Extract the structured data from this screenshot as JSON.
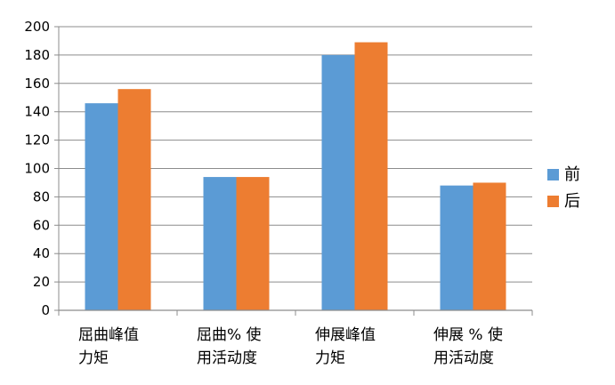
{
  "chart_data": {
    "type": "bar",
    "categories": [
      [
        "屈曲峰值",
        "力矩"
      ],
      [
        "屈曲% 使",
        "用活动度"
      ],
      [
        "伸展峰值",
        "力矩"
      ],
      [
        "伸展 % 使",
        "用活动度"
      ]
    ],
    "series": [
      {
        "name": "前",
        "color": "#5b9bd5",
        "values": [
          146,
          94,
          180,
          88
        ]
      },
      {
        "name": "后",
        "color": "#ed7d31",
        "values": [
          156,
          94,
          189,
          90
        ]
      }
    ],
    "ylim": [
      0,
      200
    ],
    "yticks": [
      0,
      20,
      40,
      60,
      80,
      100,
      120,
      140,
      160,
      180,
      200
    ],
    "grid": true,
    "legend": "right"
  }
}
